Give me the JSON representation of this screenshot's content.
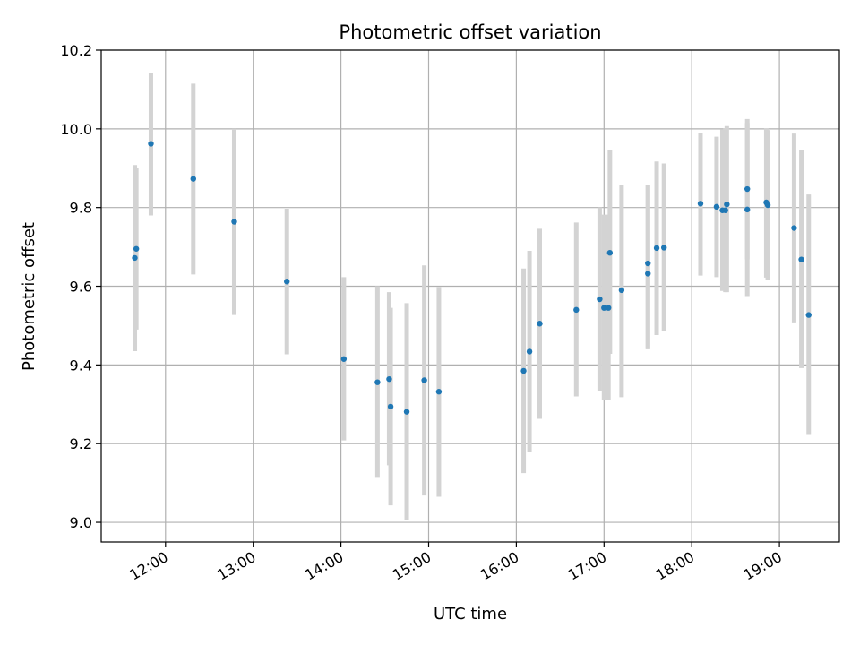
{
  "chart_data": {
    "type": "scatter",
    "title": "Photometric offset variation",
    "xlabel": "UTC time",
    "ylabel": "Photometric offset",
    "x_unit": "UTC time of day (HH:MM)",
    "xlim": [
      "11:16",
      "19:41"
    ],
    "ylim": [
      8.95,
      10.2
    ],
    "x_ticks": [
      "12:00",
      "13:00",
      "14:00",
      "15:00",
      "16:00",
      "17:00",
      "18:00",
      "19:00"
    ],
    "y_ticks": [
      9.0,
      9.2,
      9.4,
      9.6,
      9.8,
      10.0,
      10.2
    ],
    "y_tick_labels": [
      "9.0",
      "9.2",
      "9.4",
      "9.6",
      "9.8",
      "10.0",
      "10.2"
    ],
    "grid": true,
    "colors": {
      "points": "#1f77b4",
      "error_bars": "#d3d3d3"
    },
    "series": [
      {
        "marker": "point",
        "points": [
          {
            "x": "11:39",
            "y": 9.672,
            "err": [
              9.435,
              9.908
            ]
          },
          {
            "x": "11:40",
            "y": 9.695,
            "err": [
              9.49,
              9.9
            ]
          },
          {
            "x": "11:50",
            "y": 9.962,
            "err": [
              9.78,
              10.143
            ]
          },
          {
            "x": "12:19",
            "y": 9.873,
            "err": [
              9.63,
              10.115
            ]
          },
          {
            "x": "12:47",
            "y": 9.764,
            "err": [
              9.527,
              10.0
            ]
          },
          {
            "x": "13:23",
            "y": 9.612,
            "err": [
              9.427,
              9.797
            ]
          },
          {
            "x": "14:02",
            "y": 9.415,
            "err": [
              9.208,
              9.623
            ]
          },
          {
            "x": "14:25",
            "y": 9.356,
            "err": [
              9.113,
              9.6
            ]
          },
          {
            "x": "14:33",
            "y": 9.364,
            "err": [
              9.145,
              9.585
            ]
          },
          {
            "x": "14:34",
            "y": 9.294,
            "err": [
              9.043,
              9.545
            ]
          },
          {
            "x": "14:45",
            "y": 9.281,
            "err": [
              9.005,
              9.557
            ]
          },
          {
            "x": "14:57",
            "y": 9.361,
            "err": [
              9.068,
              9.653
            ]
          },
          {
            "x": "15:07",
            "y": 9.332,
            "err": [
              9.065,
              9.598
            ]
          },
          {
            "x": "16:05",
            "y": 9.385,
            "err": [
              9.125,
              9.645
            ]
          },
          {
            "x": "16:09",
            "y": 9.434,
            "err": [
              9.178,
              9.69
            ]
          },
          {
            "x": "16:16",
            "y": 9.505,
            "err": [
              9.263,
              9.746
            ]
          },
          {
            "x": "16:41",
            "y": 9.54,
            "err": [
              9.32,
              9.762
            ]
          },
          {
            "x": "16:57",
            "y": 9.567,
            "err": [
              9.333,
              9.8
            ]
          },
          {
            "x": "17:00",
            "y": 9.545,
            "err": [
              9.31,
              9.782
            ]
          },
          {
            "x": "17:03",
            "y": 9.545,
            "err": [
              9.31,
              9.782
            ]
          },
          {
            "x": "17:04",
            "y": 9.685,
            "err": [
              9.428,
              9.945
            ]
          },
          {
            "x": "17:12",
            "y": 9.59,
            "err": [
              9.318,
              9.858
            ]
          },
          {
            "x": "17:30",
            "y": 9.658,
            "err": [
              9.44,
              9.858
            ]
          },
          {
            "x": "17:30",
            "y": 9.632,
            "err": [
              9.44,
              9.858
            ]
          },
          {
            "x": "17:36",
            "y": 9.697,
            "err": [
              9.476,
              9.917
            ]
          },
          {
            "x": "17:41",
            "y": 9.698,
            "err": [
              9.485,
              9.912
            ]
          },
          {
            "x": "18:06",
            "y": 9.81,
            "err": [
              9.627,
              9.99
            ]
          },
          {
            "x": "18:17",
            "y": 9.802,
            "err": [
              9.623,
              9.98
            ]
          },
          {
            "x": "18:21",
            "y": 9.793,
            "err": [
              9.588,
              9.998
            ]
          },
          {
            "x": "18:23",
            "y": 9.793,
            "err": [
              9.585,
              10.001
            ]
          },
          {
            "x": "18:24",
            "y": 9.808,
            "err": [
              9.585,
              10.007
            ]
          },
          {
            "x": "18:38",
            "y": 9.847,
            "err": [
              9.668,
              10.025
            ]
          },
          {
            "x": "18:38",
            "y": 9.795,
            "err": [
              9.575,
              10.015
            ]
          },
          {
            "x": "18:51",
            "y": 9.813,
            "err": [
              9.622,
              10.002
            ]
          },
          {
            "x": "18:52",
            "y": 9.806,
            "err": [
              9.615,
              9.997
            ]
          },
          {
            "x": "19:10",
            "y": 9.748,
            "err": [
              9.508,
              9.988
            ]
          },
          {
            "x": "19:15",
            "y": 9.668,
            "err": [
              9.392,
              9.945
            ]
          },
          {
            "x": "19:20",
            "y": 9.527,
            "err": [
              9.222,
              9.833
            ]
          }
        ]
      }
    ]
  }
}
